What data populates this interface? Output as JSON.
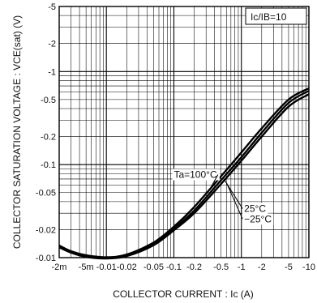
{
  "chart_data": {
    "type": "line",
    "title": "",
    "xlabel": "COLLECTOR  CURRENT : Ic (A)",
    "ylabel": "COLLECTOR  SATURATION  VOLTAGE : VCE(sat) (V)",
    "x_scale": "log",
    "y_scale": "log",
    "xlim": [
      -0.002,
      -10
    ],
    "ylim": [
      -0.01,
      -5
    ],
    "grid": true,
    "legend": "none",
    "x_ticks": [
      {
        "value": -0.002,
        "label": "-2m"
      },
      {
        "value": -0.005,
        "label": "-5m"
      },
      {
        "value": -0.01,
        "label": "-0.01"
      },
      {
        "value": -0.02,
        "label": "-0.02"
      },
      {
        "value": -0.05,
        "label": "-0.05"
      },
      {
        "value": -0.1,
        "label": "-0.1"
      },
      {
        "value": -0.2,
        "label": "-0.2"
      },
      {
        "value": -0.5,
        "label": "-0.5"
      },
      {
        "value": -1,
        "label": "-1"
      },
      {
        "value": -2,
        "label": "-2"
      },
      {
        "value": -5,
        "label": "-5"
      },
      {
        "value": -10,
        "label": "-10"
      }
    ],
    "y_ticks": [
      {
        "value": -5,
        "label": "-5"
      },
      {
        "value": -2,
        "label": "-2"
      },
      {
        "value": -1,
        "label": "-1"
      },
      {
        "value": -0.5,
        "label": "-0.5"
      },
      {
        "value": -0.2,
        "label": "-0.2"
      },
      {
        "value": -0.1,
        "label": "-0.1"
      },
      {
        "value": -0.05,
        "label": "-0.05"
      },
      {
        "value": -0.02,
        "label": "-0.02"
      },
      {
        "value": -0.01,
        "label": "-0.01"
      }
    ],
    "condition_label": "Ic/IB=10",
    "series": [
      {
        "name": "Ta=100°C",
        "points": [
          [
            -0.002,
            -0.0135
          ],
          [
            -0.003,
            -0.0117
          ],
          [
            -0.005,
            -0.0106
          ],
          [
            -0.01,
            -0.0101
          ],
          [
            -0.02,
            -0.0108
          ],
          [
            -0.05,
            -0.0145
          ],
          [
            -0.1,
            -0.0215
          ],
          [
            -0.2,
            -0.035
          ],
          [
            -0.5,
            -0.075
          ],
          [
            -1,
            -0.135
          ],
          [
            -2,
            -0.245
          ],
          [
            -5,
            -0.5
          ],
          [
            -10,
            -0.66
          ]
        ]
      },
      {
        "name": "25°C",
        "points": [
          [
            -0.002,
            -0.0132
          ],
          [
            -0.003,
            -0.0115
          ],
          [
            -0.005,
            -0.0104
          ],
          [
            -0.01,
            -0.0099
          ],
          [
            -0.02,
            -0.0106
          ],
          [
            -0.05,
            -0.014
          ],
          [
            -0.1,
            -0.0205
          ],
          [
            -0.2,
            -0.032
          ],
          [
            -0.5,
            -0.068
          ],
          [
            -1,
            -0.12
          ],
          [
            -2,
            -0.22
          ],
          [
            -5,
            -0.46
          ],
          [
            -10,
            -0.62
          ]
        ]
      },
      {
        "name": "-25°C",
        "points": [
          [
            -0.002,
            -0.0129
          ],
          [
            -0.003,
            -0.0113
          ],
          [
            -0.005,
            -0.0102
          ],
          [
            -0.01,
            -0.0098
          ],
          [
            -0.02,
            -0.0104
          ],
          [
            -0.05,
            -0.0136
          ],
          [
            -0.1,
            -0.0197
          ],
          [
            -0.2,
            -0.03
          ],
          [
            -0.5,
            -0.062
          ],
          [
            -1,
            -0.11
          ],
          [
            -2,
            -0.2
          ],
          [
            -5,
            -0.42
          ],
          [
            -10,
            -0.57
          ]
        ]
      }
    ],
    "annotations": [
      {
        "text": "Ta=100°C",
        "x": -0.1,
        "y": -0.072
      },
      {
        "text": "25°C",
        "x": -1.1,
        "y": -0.031
      },
      {
        "text": "−25°C",
        "x": -1.1,
        "y": -0.024
      }
    ]
  }
}
